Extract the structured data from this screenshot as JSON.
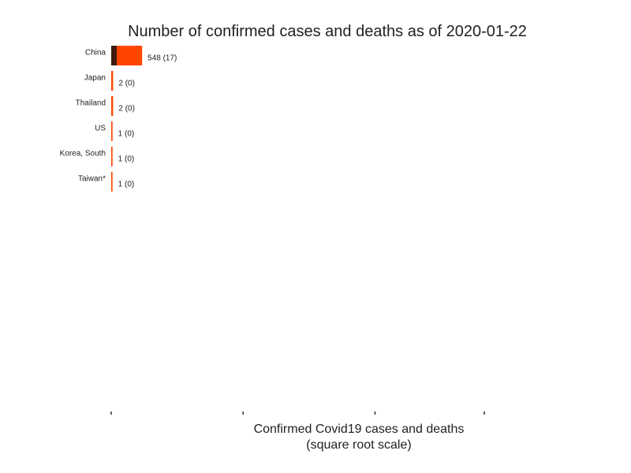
{
  "chart_data": {
    "type": "bar",
    "orientation": "horizontal",
    "stacked": true,
    "title": "Number of confirmed cases and deaths as of 2020-01-22",
    "xlabel": "Confirmed Covid19 cases and deaths",
    "xlabel_note": "(square root scale)",
    "x_scale": "sqrt",
    "xlim": [
      0,
      80000
    ],
    "x_ticks": [
      0,
      10000,
      40000,
      80000
    ],
    "x_tick_labels_shown": false,
    "grid": false,
    "categories": [
      "China",
      "Japan",
      "Thailand",
      "US",
      "Korea, South",
      "Taiwan*"
    ],
    "series": [
      {
        "values": [
          548,
          2,
          2,
          1,
          1,
          1
        ],
        "color": "#ff4500"
      },
      {
        "values": [
          17,
          0,
          0,
          0,
          0,
          0
        ],
        "color": "#3d1c0e"
      }
    ],
    "data_labels": [
      "548 (17)",
      "2 (0)",
      "2 (0)",
      "1 (0)",
      "1 (0)",
      "1 (0)"
    ]
  }
}
